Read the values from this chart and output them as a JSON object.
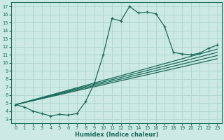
{
  "xlabel": "Humidex (Indice chaleur)",
  "bg_color": "#cce9e4",
  "grid_color": "#b0d8d0",
  "line_color": "#1a6b5a",
  "xlim": [
    -0.5,
    23.5
  ],
  "ylim": [
    2.5,
    17.5
  ],
  "xticks": [
    0,
    1,
    2,
    3,
    4,
    5,
    6,
    7,
    8,
    9,
    10,
    11,
    12,
    13,
    14,
    15,
    16,
    17,
    18,
    19,
    20,
    21,
    22,
    23
  ],
  "yticks": [
    3,
    4,
    5,
    6,
    7,
    8,
    9,
    10,
    11,
    12,
    13,
    14,
    15,
    16,
    17
  ],
  "main_line": [
    [
      0,
      4.8
    ],
    [
      1,
      4.5
    ],
    [
      2,
      4.0
    ],
    [
      3,
      3.7
    ],
    [
      4,
      3.4
    ],
    [
      5,
      3.6
    ],
    [
      6,
      3.5
    ],
    [
      7,
      3.7
    ],
    [
      8,
      5.2
    ],
    [
      9,
      7.5
    ],
    [
      10,
      11.0
    ],
    [
      11,
      15.5
    ],
    [
      12,
      15.2
    ],
    [
      13,
      17.0
    ],
    [
      14,
      16.2
    ],
    [
      15,
      16.3
    ],
    [
      16,
      16.1
    ],
    [
      17,
      14.5
    ],
    [
      18,
      11.3
    ],
    [
      19,
      11.1
    ],
    [
      20,
      11.0
    ],
    [
      21,
      11.2
    ],
    [
      22,
      11.8
    ],
    [
      23,
      12.2
    ]
  ],
  "ref_lines": [
    [
      [
        0,
        4.8
      ],
      [
        23,
        10.5
      ]
    ],
    [
      [
        0,
        4.8
      ],
      [
        23,
        10.9
      ]
    ],
    [
      [
        0,
        4.8
      ],
      [
        23,
        11.3
      ]
    ],
    [
      [
        0,
        4.8
      ],
      [
        23,
        11.7
      ]
    ]
  ]
}
